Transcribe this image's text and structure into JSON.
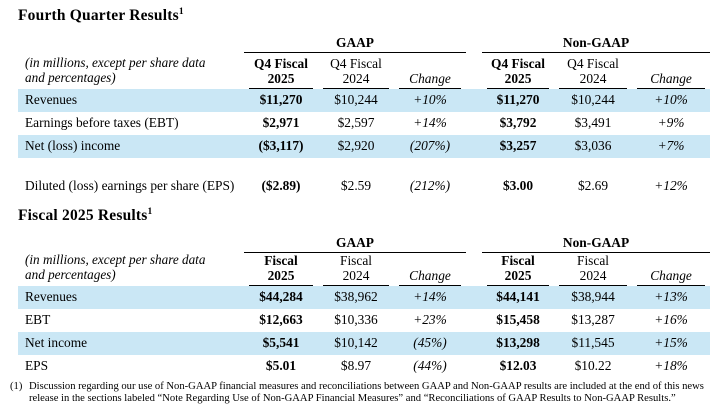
{
  "colors": {
    "row_highlight": "#cae7f5",
    "rule_color": "#000000"
  },
  "q4": {
    "title": "Fourth Quarter Results",
    "title_sup": "1",
    "units_note_line1": "(in millions, except per share data",
    "units_note_line2": "and percentages)",
    "group_left": "GAAP",
    "group_right": "Non-GAAP",
    "col_cur_line1": "Q4 Fiscal",
    "col_cur_line2": "2025",
    "col_prev_line1": "Q4 Fiscal",
    "col_prev_line2": "2024",
    "col_change": "Change",
    "rows": [
      {
        "label": "Revenues",
        "g1": "$11,270",
        "g2": "$10,244",
        "g3": "+10%",
        "n1": "$11,270",
        "n2": "$10,244",
        "n3": "+10%"
      },
      {
        "label": "Earnings before taxes (EBT)",
        "g1": "$2,971",
        "g2": "$2,597",
        "g3": "+14%",
        "n1": "$3,792",
        "n2": "$3,491",
        "n3": "+9%"
      },
      {
        "label": "Net (loss) income",
        "g1": "($3,117)",
        "g2": "$2,920",
        "g3": "(207%)",
        "n1": "$3,257",
        "n2": "$3,036",
        "n3": "+7%"
      },
      {
        "label": "Diluted (loss) earnings per share (EPS)",
        "g1": "($2.89)",
        "g2": "$2.59",
        "g3": "(212%)",
        "n1": "$3.00",
        "n2": "$2.69",
        "n3": "+12%"
      }
    ]
  },
  "fy": {
    "title": "Fiscal 2025 Results",
    "title_sup": "1",
    "units_note_line1": "(in millions, except per share data",
    "units_note_line2": "and percentages)",
    "group_left": "GAAP",
    "group_right": "Non-GAAP",
    "col_cur_line1": "Fiscal",
    "col_cur_line2": "2025",
    "col_prev_line1": "Fiscal",
    "col_prev_line2": "2024",
    "col_change": "Change",
    "rows": [
      {
        "label": "Revenues",
        "g1": "$44,284",
        "g2": "$38,962",
        "g3": "+14%",
        "n1": "$44,141",
        "n2": "$38,944",
        "n3": "+13%"
      },
      {
        "label": "EBT",
        "g1": "$12,663",
        "g2": "$10,336",
        "g3": "+23%",
        "n1": "$15,458",
        "n2": "$13,287",
        "n3": "+16%"
      },
      {
        "label": "Net income",
        "g1": "$5,541",
        "g2": "$10,142",
        "g3": "(45%)",
        "n1": "$13,298",
        "n2": "$11,545",
        "n3": "+15%"
      },
      {
        "label": "EPS",
        "g1": "$5.01",
        "g2": "$8.97",
        "g3": "(44%)",
        "n1": "$12.03",
        "n2": "$10.22",
        "n3": "+18%"
      }
    ]
  },
  "footnote": {
    "marker": "(1)",
    "text": "Discussion regarding our use of Non-GAAP financial measures and reconciliations between GAAP and Non-GAAP results are included at the end of this news release in the sections labeled “Note Regarding Use of Non-GAAP Financial Measures” and “Reconciliations of GAAP Results to Non-GAAP Results.”"
  }
}
